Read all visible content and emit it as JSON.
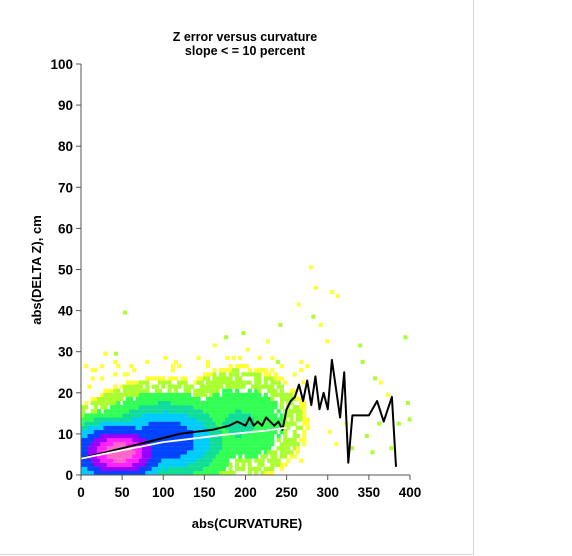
{
  "chart_data": {
    "type": "heatmap",
    "title": "Z error versus curvature",
    "subtitle": "slope < = 10 percent",
    "xlabel": "abs(CURVATURE)",
    "ylabel": "abs(DELTA Z), cm",
    "xlim": [
      0,
      400
    ],
    "ylim": [
      0,
      100
    ],
    "x_ticks": [
      0,
      50,
      100,
      150,
      200,
      250,
      300,
      350,
      400
    ],
    "y_ticks": [
      0,
      10,
      20,
      30,
      40,
      50,
      60,
      70,
      80,
      90,
      100
    ],
    "grid": false,
    "legend": "none",
    "density_colors": [
      "#ffff33",
      "#aaff33",
      "#33ff55",
      "#11dd99",
      "#00ccff",
      "#0044ff",
      "#9900ff",
      "#ff22ff",
      "#ff66cc"
    ],
    "series": [
      {
        "type": "line",
        "color": "#000000",
        "x": [
          0,
          20,
          40,
          60,
          80,
          100,
          120,
          140,
          160,
          180,
          190,
          200,
          205,
          210,
          215,
          220,
          225,
          230,
          235,
          240,
          245,
          250,
          255,
          260,
          265,
          270,
          275,
          280,
          285,
          290,
          295,
          300,
          305,
          310,
          315,
          320,
          325,
          330,
          350,
          360,
          368,
          378,
          383
        ],
        "y": [
          4,
          5,
          6,
          7,
          8,
          9,
          10,
          10.5,
          11,
          12,
          13,
          12,
          14,
          12,
          13,
          12,
          14,
          13,
          12,
          13,
          11,
          16,
          18,
          19,
          22,
          18,
          23,
          17,
          24,
          16,
          20,
          16,
          28,
          21,
          14,
          25,
          3,
          14.5,
          14.5,
          18,
          13,
          19,
          2
        ]
      },
      {
        "type": "line",
        "color": "#ffffff",
        "x": [
          0,
          25,
          50,
          75,
          100,
          125,
          150,
          175,
          200,
          225,
          250
        ],
        "y": [
          4,
          5,
          6,
          7,
          8,
          8.6,
          9.2,
          9.8,
          10.3,
          10.8,
          11.5
        ]
      }
    ]
  }
}
